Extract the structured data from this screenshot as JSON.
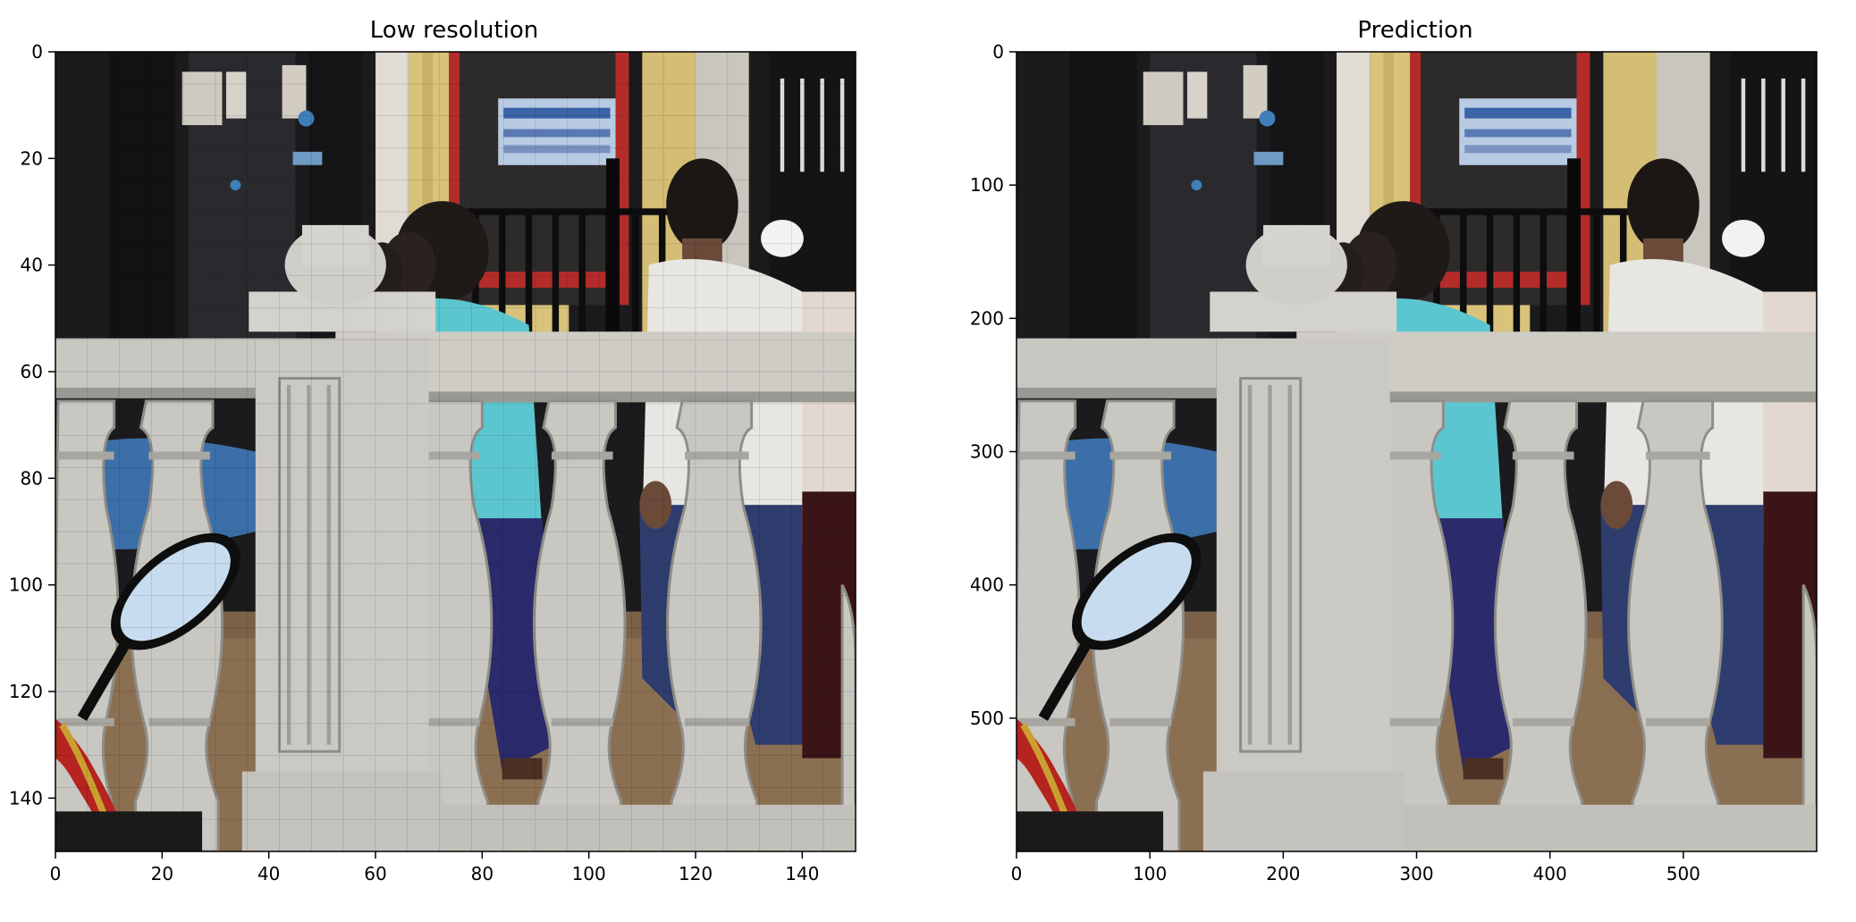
{
  "panels": [
    {
      "id": "low",
      "title": "Low resolution",
      "xticks": [
        0,
        20,
        40,
        60,
        80,
        100,
        120,
        140
      ],
      "yticks": [
        0,
        20,
        40,
        60,
        80,
        100,
        120,
        140
      ],
      "extent": 150
    },
    {
      "id": "pred",
      "title": "Prediction",
      "xticks": [
        0,
        100,
        200,
        300,
        400,
        500
      ],
      "yticks": [
        0,
        100,
        200,
        300,
        400,
        500
      ],
      "extent": 600
    }
  ],
  "colors": {
    "background": "#ffffff",
    "axis": "#000000",
    "stone": "#c9c7c2",
    "stone_shadow": "#9a9893",
    "building_dark": "#1b1b1d",
    "yellow_wall": "#d9c27a",
    "shirt_cyan": "#5bc6cf",
    "shirt_white": "#e8e6e2",
    "trousers_navy": "#2b2a6b",
    "ground": "#8b6f52",
    "red_frame": "#b32c2a"
  }
}
